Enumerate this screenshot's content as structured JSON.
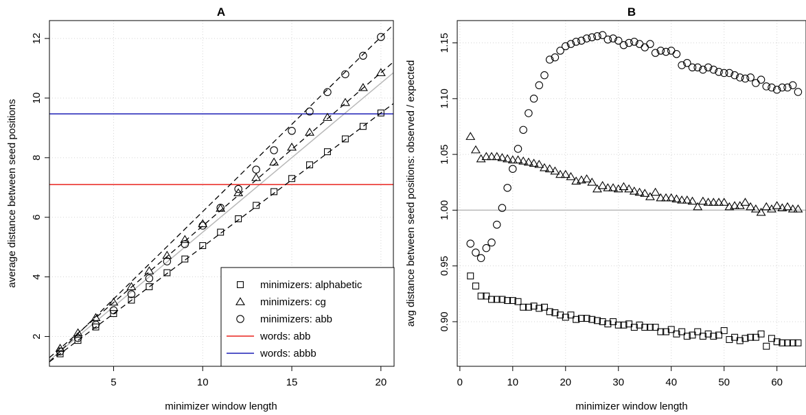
{
  "chart_data": [
    {
      "panel": "A",
      "type": "scatter",
      "title": "A",
      "xlabel": "minimizer window length",
      "ylabel": "average distance between seed positions",
      "xlim": [
        1.4,
        20.7
      ],
      "ylim": [
        1.0,
        12.6
      ],
      "xticks": [
        5,
        10,
        15,
        20
      ],
      "yticks": [
        2,
        4,
        6,
        8,
        10,
        12
      ],
      "grid": true,
      "legend_position": "bottom-right",
      "series": [
        {
          "name": "minimizers: alphabetic",
          "marker": "square",
          "x": [
            2,
            3,
            4,
            5,
            6,
            7,
            8,
            9,
            10,
            11,
            12,
            13,
            14,
            15,
            16,
            17,
            18,
            19,
            20
          ],
          "y": [
            1.42,
            1.87,
            2.32,
            2.77,
            3.22,
            3.67,
            4.14,
            4.6,
            5.05,
            5.5,
            5.95,
            6.4,
            6.86,
            7.3,
            7.76,
            8.2,
            8.63,
            9.05,
            9.5
          ]
        },
        {
          "name": "minimizers: cg",
          "marker": "triangle",
          "x": [
            2,
            3,
            4,
            5,
            6,
            7,
            8,
            9,
            10,
            11,
            12,
            13,
            14,
            15,
            16,
            17,
            18,
            19,
            20
          ],
          "y": [
            1.6,
            2.12,
            2.63,
            3.15,
            3.67,
            4.2,
            4.72,
            5.25,
            5.78,
            6.3,
            6.82,
            7.33,
            7.85,
            8.35,
            8.85,
            9.35,
            9.85,
            10.35,
            10.85
          ]
        },
        {
          "name": "minimizers: abb",
          "marker": "circle",
          "x": [
            2,
            3,
            4,
            5,
            6,
            7,
            8,
            9,
            10,
            11,
            12,
            13,
            14,
            15,
            16,
            17,
            18,
            19,
            20
          ],
          "y": [
            1.5,
            1.95,
            2.4,
            2.88,
            3.42,
            3.95,
            4.52,
            5.1,
            5.72,
            6.32,
            6.95,
            7.6,
            8.25,
            8.9,
            9.55,
            10.2,
            10.8,
            11.42,
            12.05
          ]
        },
        {
          "name": "words: abb",
          "kind": "hline",
          "y": 7.1,
          "color": "#e8201c"
        },
        {
          "name": "words: abbb",
          "kind": "hline",
          "y": 9.47,
          "color": "#1c1fb5"
        }
      ],
      "reference_line": {
        "kind": "abline",
        "slope": 0.5,
        "intercept": 0.5,
        "color": "#b8b8b8"
      }
    },
    {
      "panel": "B",
      "type": "scatter",
      "title": "B",
      "xlabel": "minimizer window length",
      "ylabel": "avg distance between seed positions: observed / expected",
      "xlim": [
        -0.5,
        65.5
      ],
      "ylim": [
        0.86,
        1.17
      ],
      "xticks": [
        0,
        10,
        20,
        30,
        40,
        50,
        60
      ],
      "yticks": [
        0.9,
        0.95,
        1.0,
        1.05,
        1.1,
        1.15
      ],
      "ytick_labels": [
        "0.90",
        "0.95",
        "1.00",
        "1.05",
        "1.10",
        "1.15"
      ],
      "grid": true,
      "reference_hline": {
        "y": 1.0,
        "color": "#b8b8b8"
      },
      "series": [
        {
          "name": "minimizers: alphabetic",
          "marker": "square",
          "x": [
            2,
            3,
            4,
            5,
            6,
            7,
            8,
            9,
            10,
            11,
            12,
            13,
            14,
            15,
            16,
            17,
            18,
            19,
            20,
            21,
            22,
            23,
            24,
            25,
            26,
            27,
            28,
            29,
            30,
            31,
            32,
            33,
            34,
            35,
            36,
            37,
            38,
            39,
            40,
            41,
            42,
            43,
            44,
            45,
            46,
            47,
            48,
            49,
            50,
            51,
            52,
            53,
            54,
            55,
            56,
            57,
            58,
            59,
            60,
            61,
            62,
            63,
            64
          ],
          "y": [
            0.941,
            0.932,
            0.923,
            0.923,
            0.92,
            0.92,
            0.92,
            0.919,
            0.919,
            0.918,
            0.913,
            0.913,
            0.914,
            0.912,
            0.913,
            0.909,
            0.908,
            0.906,
            0.904,
            0.906,
            0.902,
            0.903,
            0.903,
            0.902,
            0.901,
            0.9,
            0.898,
            0.9,
            0.897,
            0.897,
            0.898,
            0.895,
            0.897,
            0.895,
            0.895,
            0.895,
            0.891,
            0.891,
            0.893,
            0.889,
            0.891,
            0.887,
            0.888,
            0.891,
            0.887,
            0.889,
            0.887,
            0.888,
            0.892,
            0.884,
            0.886,
            0.883,
            0.885,
            0.886,
            0.886,
            0.889,
            0.878,
            0.885,
            0.882,
            0.881,
            0.881,
            0.881,
            0.881
          ]
        },
        {
          "name": "minimizers: cg",
          "marker": "triangle",
          "x": [
            2,
            3,
            4,
            5,
            6,
            7,
            8,
            9,
            10,
            11,
            12,
            13,
            14,
            15,
            16,
            17,
            18,
            19,
            20,
            21,
            22,
            23,
            24,
            25,
            26,
            27,
            28,
            29,
            30,
            31,
            32,
            33,
            34,
            35,
            36,
            37,
            38,
            39,
            40,
            41,
            42,
            43,
            44,
            45,
            46,
            47,
            48,
            49,
            50,
            51,
            52,
            53,
            54,
            55,
            56,
            57,
            58,
            59,
            60,
            61,
            62,
            63,
            64
          ],
          "y": [
            1.066,
            1.054,
            1.046,
            1.048,
            1.048,
            1.048,
            1.047,
            1.046,
            1.045,
            1.045,
            1.044,
            1.043,
            1.042,
            1.041,
            1.038,
            1.037,
            1.035,
            1.032,
            1.032,
            1.03,
            1.026,
            1.027,
            1.028,
            1.025,
            1.019,
            1.022,
            1.02,
            1.02,
            1.019,
            1.021,
            1.019,
            1.017,
            1.016,
            1.015,
            1.012,
            1.016,
            1.011,
            1.011,
            1.011,
            1.01,
            1.009,
            1.009,
            1.008,
            1.003,
            1.008,
            1.007,
            1.007,
            1.007,
            1.007,
            1.003,
            1.004,
            1.004,
            1.007,
            1.003,
            1.001,
            0.998,
            1.003,
            1.001,
            1.004,
            1.002,
            1.003,
            1.001,
            1.001
          ]
        },
        {
          "name": "minimizers: abb",
          "marker": "circle",
          "x": [
            2,
            3,
            4,
            5,
            6,
            7,
            8,
            9,
            10,
            11,
            12,
            13,
            14,
            15,
            16,
            17,
            18,
            19,
            20,
            21,
            22,
            23,
            24,
            25,
            26,
            27,
            28,
            29,
            30,
            31,
            32,
            33,
            34,
            35,
            36,
            37,
            38,
            39,
            40,
            41,
            42,
            43,
            44,
            45,
            46,
            47,
            48,
            49,
            50,
            51,
            52,
            53,
            54,
            55,
            56,
            57,
            58,
            59,
            60,
            61,
            62,
            63,
            64
          ],
          "y": [
            0.97,
            0.962,
            0.957,
            0.966,
            0.971,
            0.987,
            1.002,
            1.02,
            1.037,
            1.055,
            1.072,
            1.087,
            1.1,
            1.112,
            1.121,
            1.135,
            1.137,
            1.143,
            1.147,
            1.149,
            1.151,
            1.152,
            1.154,
            1.155,
            1.156,
            1.157,
            1.153,
            1.154,
            1.152,
            1.148,
            1.15,
            1.151,
            1.149,
            1.146,
            1.149,
            1.141,
            1.143,
            1.142,
            1.143,
            1.14,
            1.13,
            1.132,
            1.128,
            1.128,
            1.126,
            1.128,
            1.126,
            1.124,
            1.123,
            1.123,
            1.121,
            1.119,
            1.118,
            1.119,
            1.114,
            1.117,
            1.111,
            1.11,
            1.108,
            1.11,
            1.11,
            1.112,
            1.106
          ]
        }
      ]
    }
  ]
}
